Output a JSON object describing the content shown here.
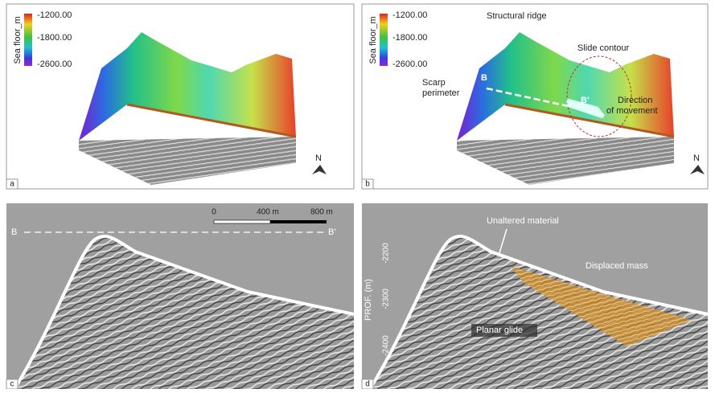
{
  "panels": [
    {
      "label": "a",
      "colorbar": {
        "title": "Sea floor_m",
        "ticks": [
          "-1200.00",
          "-1800.00",
          "-2600.00"
        ]
      },
      "north": "N"
    },
    {
      "label": "b",
      "colorbar": {
        "title": "Sea floor_m",
        "ticks": [
          "-1200.00",
          "-1800.00",
          "-2600.00"
        ]
      },
      "north": "N",
      "annotations": {
        "ridge": "Structural ridge",
        "contour": "Slide contour",
        "scarp": [
          "Scarp",
          "perimeter"
        ],
        "start": "B",
        "end": "B′",
        "direction": [
          "Direction",
          "of movement"
        ]
      }
    },
    {
      "label": "c",
      "section": {
        "start": "B",
        "end": "B′"
      },
      "scale": [
        "0",
        "400 m",
        "800 m"
      ]
    },
    {
      "label": "d",
      "axis": {
        "title": "PROF. (m)",
        "ticks": [
          "-2200",
          "-2300",
          "-2400"
        ]
      },
      "annotations": {
        "unaltered": "Unaltered material",
        "displaced": "Displaced mass",
        "glide": "Planar glide"
      }
    }
  ]
}
